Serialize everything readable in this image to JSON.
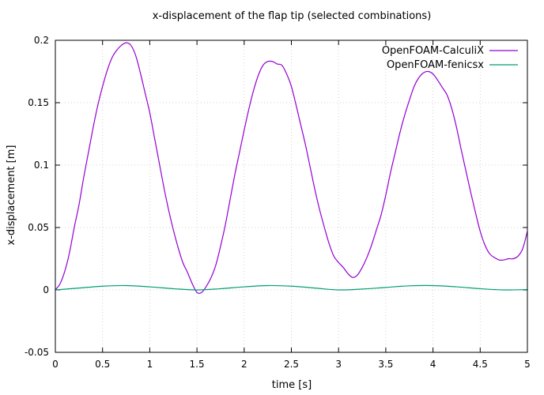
{
  "chart_data": {
    "type": "line",
    "title": "x-displacement of the flap tip (selected combinations)",
    "xlabel": "time [s]",
    "ylabel": "x-displacement [m]",
    "xlim": [
      0,
      5
    ],
    "ylim": [
      -0.05,
      0.2
    ],
    "xticks": [
      "0",
      "0.5",
      "1",
      "1.5",
      "2",
      "2.5",
      "3",
      "3.5",
      "4",
      "4.5",
      "5"
    ],
    "yticks": [
      "-0.05",
      "0",
      "0.05",
      "0.1",
      "0.15",
      "0.2"
    ],
    "grid": true,
    "legend_position": "top-right",
    "series": [
      {
        "name": "OpenFOAM-CalculiX",
        "color": "#9400d3",
        "x": [
          0,
          0.05,
          0.1,
          0.15,
          0.2,
          0.25,
          0.3,
          0.35,
          0.4,
          0.45,
          0.5,
          0.55,
          0.6,
          0.65,
          0.7,
          0.75,
          0.8,
          0.85,
          0.9,
          0.95,
          1.0,
          1.05,
          1.1,
          1.15,
          1.2,
          1.25,
          1.3,
          1.35,
          1.4,
          1.45,
          1.5,
          1.55,
          1.6,
          1.65,
          1.7,
          1.75,
          1.8,
          1.85,
          1.9,
          1.95,
          2.0,
          2.05,
          2.1,
          2.15,
          2.2,
          2.25,
          2.3,
          2.35,
          2.4,
          2.45,
          2.5,
          2.55,
          2.6,
          2.65,
          2.7,
          2.75,
          2.8,
          2.85,
          2.9,
          2.95,
          3.0,
          3.05,
          3.1,
          3.15,
          3.2,
          3.25,
          3.3,
          3.35,
          3.4,
          3.45,
          3.5,
          3.55,
          3.6,
          3.65,
          3.7,
          3.75,
          3.8,
          3.85,
          3.9,
          3.95,
          4.0,
          4.05,
          4.1,
          4.15,
          4.2,
          4.25,
          4.3,
          4.35,
          4.4,
          4.45,
          4.5,
          4.55,
          4.6,
          4.65,
          4.7,
          4.75,
          4.8,
          4.85,
          4.9,
          4.95,
          5.0
        ],
        "y": [
          0.0,
          0.005,
          0.015,
          0.03,
          0.05,
          0.068,
          0.09,
          0.11,
          0.13,
          0.148,
          0.163,
          0.176,
          0.186,
          0.192,
          0.196,
          0.198,
          0.196,
          0.188,
          0.174,
          0.158,
          0.142,
          0.122,
          0.102,
          0.082,
          0.064,
          0.048,
          0.034,
          0.022,
          0.014,
          0.005,
          -0.002,
          -0.002,
          0.003,
          0.01,
          0.02,
          0.035,
          0.052,
          0.072,
          0.092,
          0.11,
          0.128,
          0.145,
          0.16,
          0.172,
          0.18,
          0.183,
          0.183,
          0.181,
          0.18,
          0.173,
          0.163,
          0.148,
          0.132,
          0.116,
          0.098,
          0.08,
          0.064,
          0.05,
          0.037,
          0.027,
          0.022,
          0.018,
          0.013,
          0.01,
          0.012,
          0.018,
          0.026,
          0.036,
          0.048,
          0.06,
          0.076,
          0.094,
          0.11,
          0.126,
          0.14,
          0.152,
          0.163,
          0.17,
          0.174,
          0.175,
          0.173,
          0.168,
          0.162,
          0.156,
          0.145,
          0.13,
          0.112,
          0.095,
          0.078,
          0.062,
          0.047,
          0.036,
          0.029,
          0.026,
          0.024,
          0.024,
          0.025,
          0.025,
          0.027,
          0.033,
          0.047
        ]
      },
      {
        "name": "OpenFOAM-fenicsx",
        "color": "#009e73",
        "x": [
          0,
          0.25,
          0.5,
          0.75,
          1.0,
          1.25,
          1.5,
          1.75,
          2.0,
          2.25,
          2.5,
          2.75,
          3.0,
          3.25,
          3.5,
          3.75,
          4.0,
          4.25,
          4.5,
          4.75,
          5.0
        ],
        "y": [
          0.0,
          0.0015,
          0.003,
          0.0035,
          0.0025,
          0.001,
          0.0,
          0.001,
          0.0025,
          0.0035,
          0.003,
          0.0015,
          0.0,
          0.0007,
          0.002,
          0.0033,
          0.0035,
          0.0025,
          0.001,
          0.0,
          0.0003
        ]
      }
    ]
  }
}
